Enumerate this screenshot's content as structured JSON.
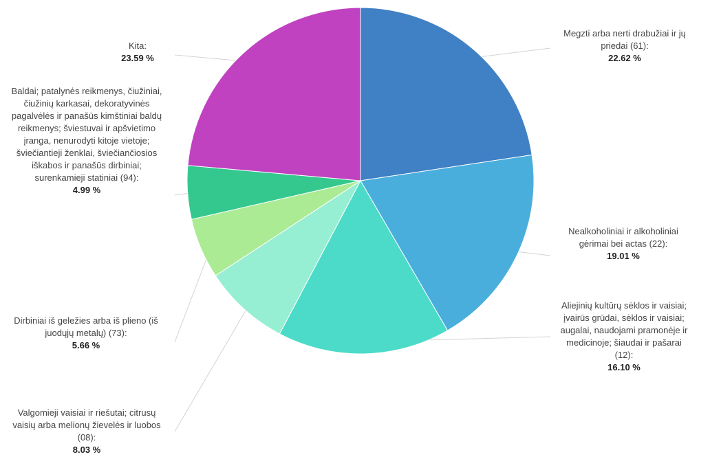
{
  "chart_data": {
    "type": "pie",
    "slices": [
      {
        "label": "Megzti arba nerti drabužiai ir jų priedai (61):",
        "value": 22.62,
        "display": "22.62 %",
        "color": "#4080C4"
      },
      {
        "label": "Nealkoholiniai ir alkoholiniai gėrimai bei actas (22):",
        "value": 19.01,
        "display": "19.01 %",
        "color": "#4AAEDD"
      },
      {
        "label": "Aliejinių kultūrų sėklos ir vaisiai; įvairūs grūdai, sėklos ir vaisiai; augalai, naudojami pramonėje ir medicinoje; šiaudai ir pašarai (12):",
        "value": 16.1,
        "display": "16.10 %",
        "color": "#4CDBC8"
      },
      {
        "label": "Valgomieji vaisiai ir riešutai; citrusų vaisių arba melionų žievelės ir luobos (08):",
        "value": 8.03,
        "display": "8.03 %",
        "color": "#96EED3"
      },
      {
        "label": "Dirbiniai iš geležies arba iš plieno (iš juodųjų metalų) (73):",
        "value": 5.66,
        "display": "5.66 %",
        "color": "#ABEB94"
      },
      {
        "label": "Baldai; patalynės reikmenys, čiužiniai, čiužinių karkasai, dekoratyvinės pagalvėlės ir panašūs kimštiniai baldų reikmenys; šviestuvai ir apšvietimo įranga, nenurodyti kitoje vietoje; šviečiantieji ženklai, šviečiančiosios iškabos ir panašūs dirbiniai; surenkamieji statiniai (94):",
        "value": 4.99,
        "display": "4.99 %",
        "color": "#34C88E"
      },
      {
        "label": "Kita:",
        "value": 23.59,
        "display": "23.59 %",
        "color": "#C042C0"
      }
    ]
  }
}
